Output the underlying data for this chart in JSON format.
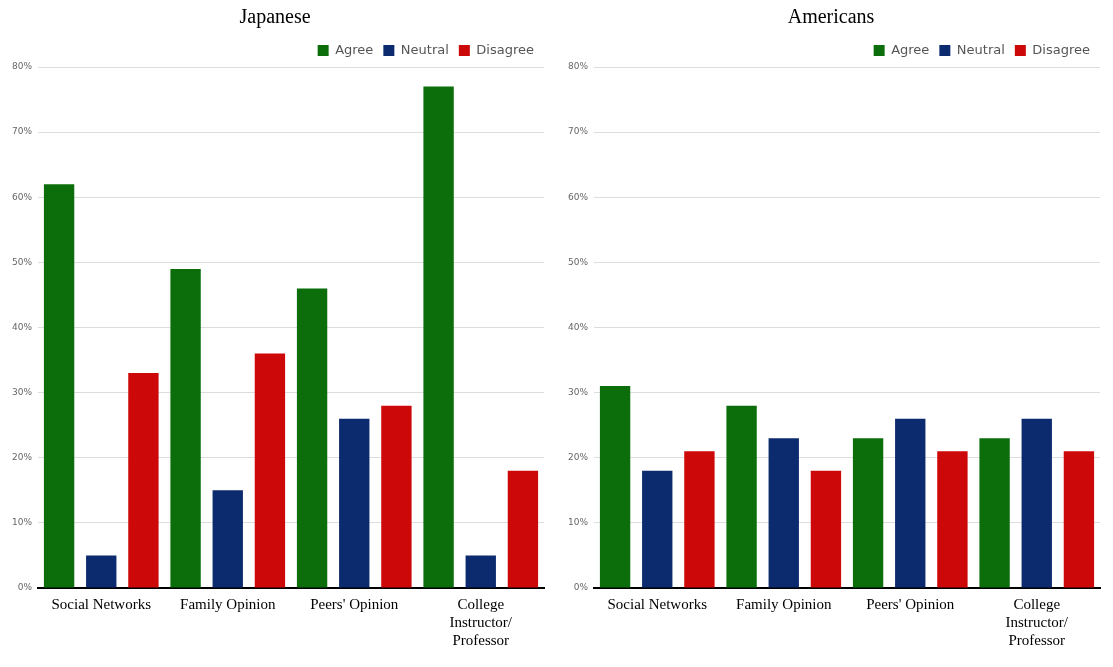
{
  "chart_data": [
    {
      "type": "bar",
      "title": "Japanese",
      "categories": [
        "Social Networks",
        "Family Opinion",
        "Peers' Opinion",
        "College Instructor/ Professor"
      ],
      "series": [
        {
          "name": "Agree",
          "color": "#0b6e0b",
          "values": [
            62,
            49,
            46,
            77
          ]
        },
        {
          "name": "Neutral",
          "color": "#0c2a6e",
          "values": [
            5,
            15,
            26,
            5
          ]
        },
        {
          "name": "Disagree",
          "color": "#cc0808",
          "values": [
            33,
            36,
            28,
            18
          ]
        }
      ],
      "ylim": [
        0,
        80
      ],
      "yticks": [
        {
          "value": 0,
          "label": "0%"
        },
        {
          "value": 10,
          "label": "10%"
        },
        {
          "value": 20,
          "label": "20%"
        },
        {
          "value": 30,
          "label": "30%"
        },
        {
          "value": 40,
          "label": "40%"
        },
        {
          "value": 50,
          "label": "50%"
        },
        {
          "value": 60,
          "label": "60%"
        },
        {
          "value": 70,
          "label": "70%"
        },
        {
          "value": 80,
          "label": "80%"
        }
      ],
      "grid": "y",
      "legend": "top right"
    },
    {
      "type": "bar",
      "title": "Americans",
      "categories": [
        "Social Networks",
        "Family Opinion",
        "Peers' Opinion",
        "College Instructor/ Professor"
      ],
      "series": [
        {
          "name": "Agree",
          "color": "#0b6e0b",
          "values": [
            31,
            28,
            23,
            23
          ]
        },
        {
          "name": "Neutral",
          "color": "#0c2a6e",
          "values": [
            18,
            23,
            26,
            26
          ]
        },
        {
          "name": "Disagree",
          "color": "#cc0808",
          "values": [
            21,
            18,
            21,
            21
          ]
        }
      ],
      "ylim": [
        0,
        80
      ],
      "yticks": [
        {
          "value": 0,
          "label": "0%"
        },
        {
          "value": 10,
          "label": "10%"
        },
        {
          "value": 20,
          "label": "20%"
        },
        {
          "value": 30,
          "label": "30%"
        },
        {
          "value": 40,
          "label": "40%"
        },
        {
          "value": 50,
          "label": "50%"
        },
        {
          "value": 60,
          "label": "60%"
        },
        {
          "value": 70,
          "label": "70%"
        },
        {
          "value": 80,
          "label": "80%"
        }
      ],
      "grid": "y",
      "legend": "top right"
    }
  ]
}
